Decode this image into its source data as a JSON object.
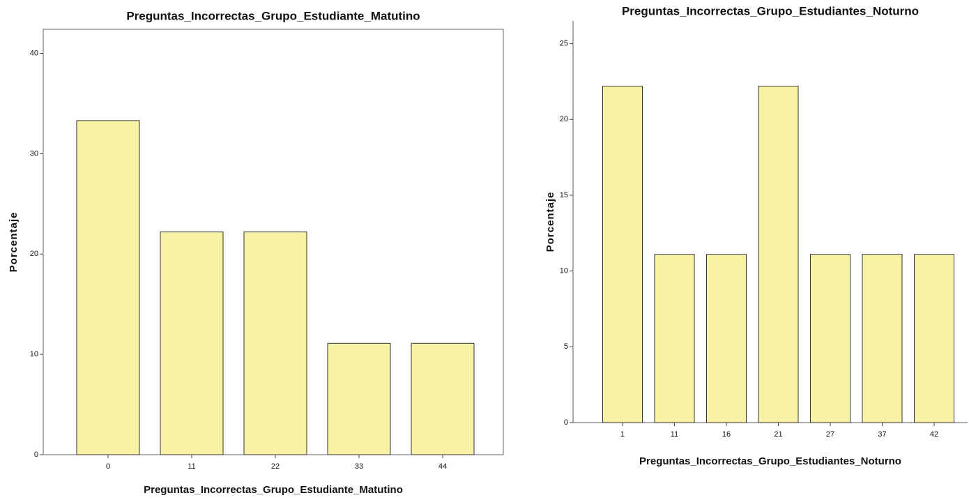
{
  "chart_data": [
    {
      "type": "bar",
      "title": "Preguntas_Incorrectas_Grupo_Estudiante_Matutino",
      "x_label": "Preguntas_Incorrectas_Grupo_Estudiante_Matutino",
      "y_label": "Porcentaje",
      "categories": [
        "0",
        "11",
        "22",
        "33",
        "44"
      ],
      "values": [
        33.3,
        22.2,
        22.2,
        11.1,
        11.1
      ],
      "color": "#f7f2a6",
      "ylim": [
        0,
        42.4
      ],
      "yticks": [
        0,
        10,
        20,
        30,
        40
      ]
    },
    {
      "type": "bar",
      "title": "Preguntas_Incorrectas_Grupo_Estudiantes_Noturno",
      "x_label": "Preguntas_Incorrectas_Grupo_Estudiantes_Noturno",
      "y_label": "Porcentaje",
      "categories": [
        "1",
        "11",
        "16",
        "21",
        "27",
        "37",
        "42"
      ],
      "values": [
        22.2,
        11.1,
        11.1,
        22.2,
        11.1,
        11.1,
        11.1
      ],
      "color": "#f7f2a6",
      "ylim": [
        0,
        26.5
      ],
      "yticks": [
        0,
        5,
        10,
        15,
        20,
        25
      ]
    }
  ]
}
